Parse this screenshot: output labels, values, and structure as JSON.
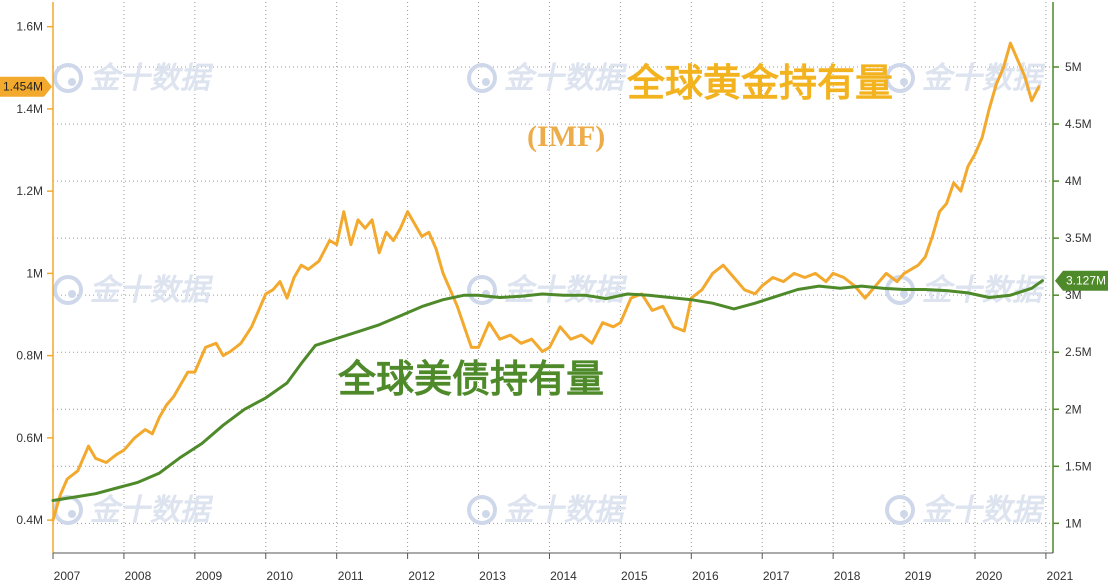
{
  "watermark": {
    "text": "金十数据"
  },
  "chart_data": {
    "type": "line",
    "x_ticks": [
      "2007",
      "2008",
      "2009",
      "2010",
      "2011",
      "2012",
      "2013",
      "2014",
      "2015",
      "2016",
      "2017",
      "2018",
      "2019",
      "2020",
      "2021"
    ],
    "left_axis": {
      "ticks": [
        "0.4M",
        "0.6M",
        "0.8M",
        "1M",
        "1.2M",
        "1.4M",
        "1.6M"
      ],
      "values": [
        400000,
        600000,
        800000,
        1000000,
        1200000,
        1400000,
        1600000
      ],
      "ylim": [
        320000,
        1660000
      ]
    },
    "right_axis": {
      "ticks": [
        "1M",
        "1.5M",
        "2M",
        "2.5M",
        "3M",
        "3.5M",
        "4M",
        "4.5M",
        "5M"
      ],
      "values": [
        1000000,
        1500000,
        2000000,
        2500000,
        3000000,
        3500000,
        4000000,
        4500000,
        5000000
      ],
      "ylim": [
        740000,
        5570000
      ]
    },
    "series": [
      {
        "name": "全球黄金持有量",
        "name_sub": "(IMF)",
        "axis": "left",
        "color": "#f2a92d",
        "last_value_label": "1.454M",
        "x": [
          2007.0,
          2007.1,
          2007.2,
          2007.35,
          2007.5,
          2007.6,
          2007.75,
          2007.9,
          2008.0,
          2008.15,
          2008.3,
          2008.4,
          2008.5,
          2008.6,
          2008.7,
          2008.8,
          2008.9,
          2009.0,
          2009.15,
          2009.3,
          2009.4,
          2009.5,
          2009.65,
          2009.8,
          2009.9,
          2010.0,
          2010.1,
          2010.2,
          2010.3,
          2010.4,
          2010.5,
          2010.6,
          2010.75,
          2010.9,
          2011.0,
          2011.1,
          2011.2,
          2011.3,
          2011.4,
          2011.5,
          2011.6,
          2011.7,
          2011.8,
          2011.9,
          2012.0,
          2012.1,
          2012.2,
          2012.3,
          2012.4,
          2012.5,
          2012.6,
          2012.7,
          2012.8,
          2012.9,
          2013.0,
          2013.15,
          2013.3,
          2013.45,
          2013.6,
          2013.75,
          2013.9,
          2014.0,
          2014.15,
          2014.3,
          2014.45,
          2014.6,
          2014.75,
          2014.9,
          2015.0,
          2015.15,
          2015.3,
          2015.45,
          2015.6,
          2015.75,
          2015.9,
          2016.0,
          2016.15,
          2016.3,
          2016.45,
          2016.6,
          2016.75,
          2016.9,
          2017.0,
          2017.15,
          2017.3,
          2017.45,
          2017.6,
          2017.75,
          2017.9,
          2018.0,
          2018.15,
          2018.3,
          2018.45,
          2018.6,
          2018.75,
          2018.9,
          2019.0,
          2019.1,
          2019.2,
          2019.3,
          2019.4,
          2019.5,
          2019.6,
          2019.7,
          2019.8,
          2019.9,
          2020.0,
          2020.1,
          2020.2,
          2020.3,
          2020.4,
          2020.5,
          2020.6,
          2020.7,
          2020.8,
          2020.9
        ],
        "values": [
          400000,
          460000,
          500000,
          520000,
          580000,
          550000,
          540000,
          560000,
          570000,
          600000,
          620000,
          610000,
          650000,
          680000,
          700000,
          730000,
          760000,
          760000,
          820000,
          830000,
          800000,
          810000,
          830000,
          870000,
          910000,
          950000,
          960000,
          980000,
          940000,
          990000,
          1020000,
          1010000,
          1030000,
          1080000,
          1070000,
          1150000,
          1070000,
          1130000,
          1110000,
          1130000,
          1050000,
          1100000,
          1080000,
          1110000,
          1150000,
          1120000,
          1090000,
          1100000,
          1060000,
          1000000,
          960000,
          920000,
          870000,
          820000,
          820000,
          880000,
          840000,
          850000,
          830000,
          840000,
          810000,
          820000,
          870000,
          840000,
          850000,
          830000,
          880000,
          870000,
          880000,
          940000,
          950000,
          910000,
          920000,
          870000,
          860000,
          940000,
          960000,
          1000000,
          1020000,
          990000,
          960000,
          950000,
          970000,
          990000,
          980000,
          1000000,
          990000,
          1000000,
          980000,
          1000000,
          990000,
          970000,
          940000,
          970000,
          1000000,
          980000,
          1000000,
          1010000,
          1020000,
          1040000,
          1090000,
          1150000,
          1170000,
          1220000,
          1200000,
          1260000,
          1290000,
          1330000,
          1400000,
          1460000,
          1500000,
          1560000,
          1520000,
          1480000,
          1420000,
          1454000
        ],
        "note": "approximate trace"
      },
      {
        "name": "全球美债持有量",
        "axis": "right",
        "color": "#4e8a2a",
        "last_value_label": "3.127M",
        "x": [
          2007.0,
          2007.3,
          2007.6,
          2007.9,
          2008.2,
          2008.5,
          2008.8,
          2009.1,
          2009.4,
          2009.7,
          2010.0,
          2010.3,
          2010.5,
          2010.7,
          2011.0,
          2011.3,
          2011.6,
          2011.9,
          2012.2,
          2012.5,
          2012.8,
          2013.0,
          2013.3,
          2013.6,
          2013.9,
          2014.2,
          2014.5,
          2014.8,
          2015.1,
          2015.4,
          2015.7,
          2016.0,
          2016.3,
          2016.6,
          2016.9,
          2017.2,
          2017.5,
          2017.8,
          2018.1,
          2018.4,
          2018.7,
          2019.0,
          2019.3,
          2019.6,
          2019.9,
          2020.2,
          2020.5,
          2020.8,
          2020.95
        ],
        "values": [
          1200000,
          1230000,
          1260000,
          1310000,
          1360000,
          1440000,
          1580000,
          1700000,
          1860000,
          2000000,
          2100000,
          2230000,
          2400000,
          2560000,
          2620000,
          2680000,
          2740000,
          2820000,
          2900000,
          2960000,
          3000000,
          3000000,
          2980000,
          2990000,
          3010000,
          3000000,
          3000000,
          2970000,
          3010000,
          3000000,
          2980000,
          2960000,
          2930000,
          2880000,
          2930000,
          2990000,
          3050000,
          3080000,
          3060000,
          3080000,
          3060000,
          3050000,
          3050000,
          3040000,
          3020000,
          2980000,
          3000000,
          3060000,
          3127000
        ],
        "note": "approximate trace"
      }
    ]
  }
}
